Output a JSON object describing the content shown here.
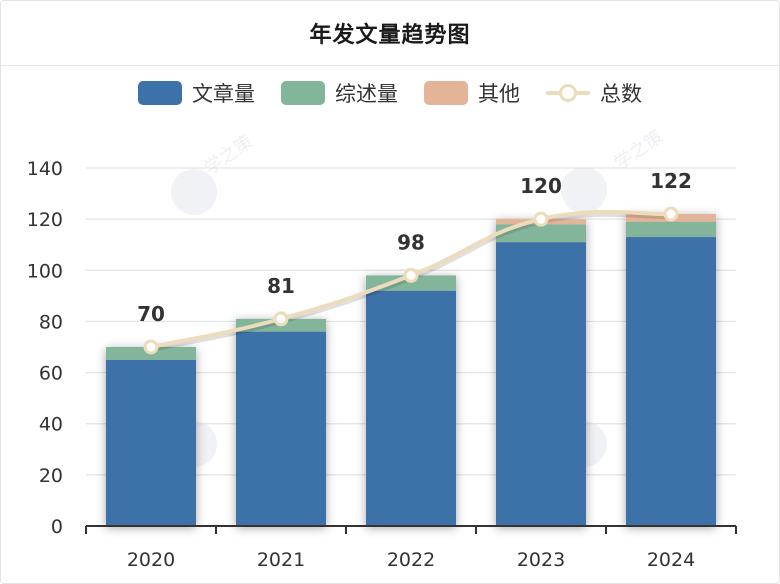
{
  "page": {
    "title": "年发文量趋势图"
  },
  "colors": {
    "articles": "#3c72a8",
    "reviews": "#83b59b",
    "others": "#e3b497",
    "total_line": "#ecdcbc",
    "axis": "#333333",
    "grid": "#e3e3e3",
    "watermark": "学之策"
  },
  "chart_data": {
    "type": "bar",
    "stacked": true,
    "title": "年发文量趋势图",
    "categories": [
      "2020",
      "2021",
      "2022",
      "2023",
      "2024"
    ],
    "ylim": [
      0,
      140
    ],
    "yticks": [
      0,
      20,
      40,
      60,
      80,
      100,
      120,
      140
    ],
    "grid": true,
    "legend_position": "top-center",
    "series": [
      {
        "name": "文章量",
        "type": "bar",
        "color_key": "articles",
        "values": [
          65,
          76,
          92,
          111,
          113
        ]
      },
      {
        "name": "综述量",
        "type": "bar",
        "color_key": "reviews",
        "values": [
          5,
          5,
          6,
          7,
          6
        ]
      },
      {
        "name": "其他",
        "type": "bar",
        "color_key": "others",
        "values": [
          0,
          0,
          0,
          2,
          3
        ]
      },
      {
        "name": "总数",
        "type": "line",
        "color_key": "total_line",
        "values": [
          70,
          81,
          98,
          120,
          122
        ]
      }
    ],
    "data_labels": [
      "70",
      "81",
      "98",
      "120",
      "122"
    ]
  }
}
